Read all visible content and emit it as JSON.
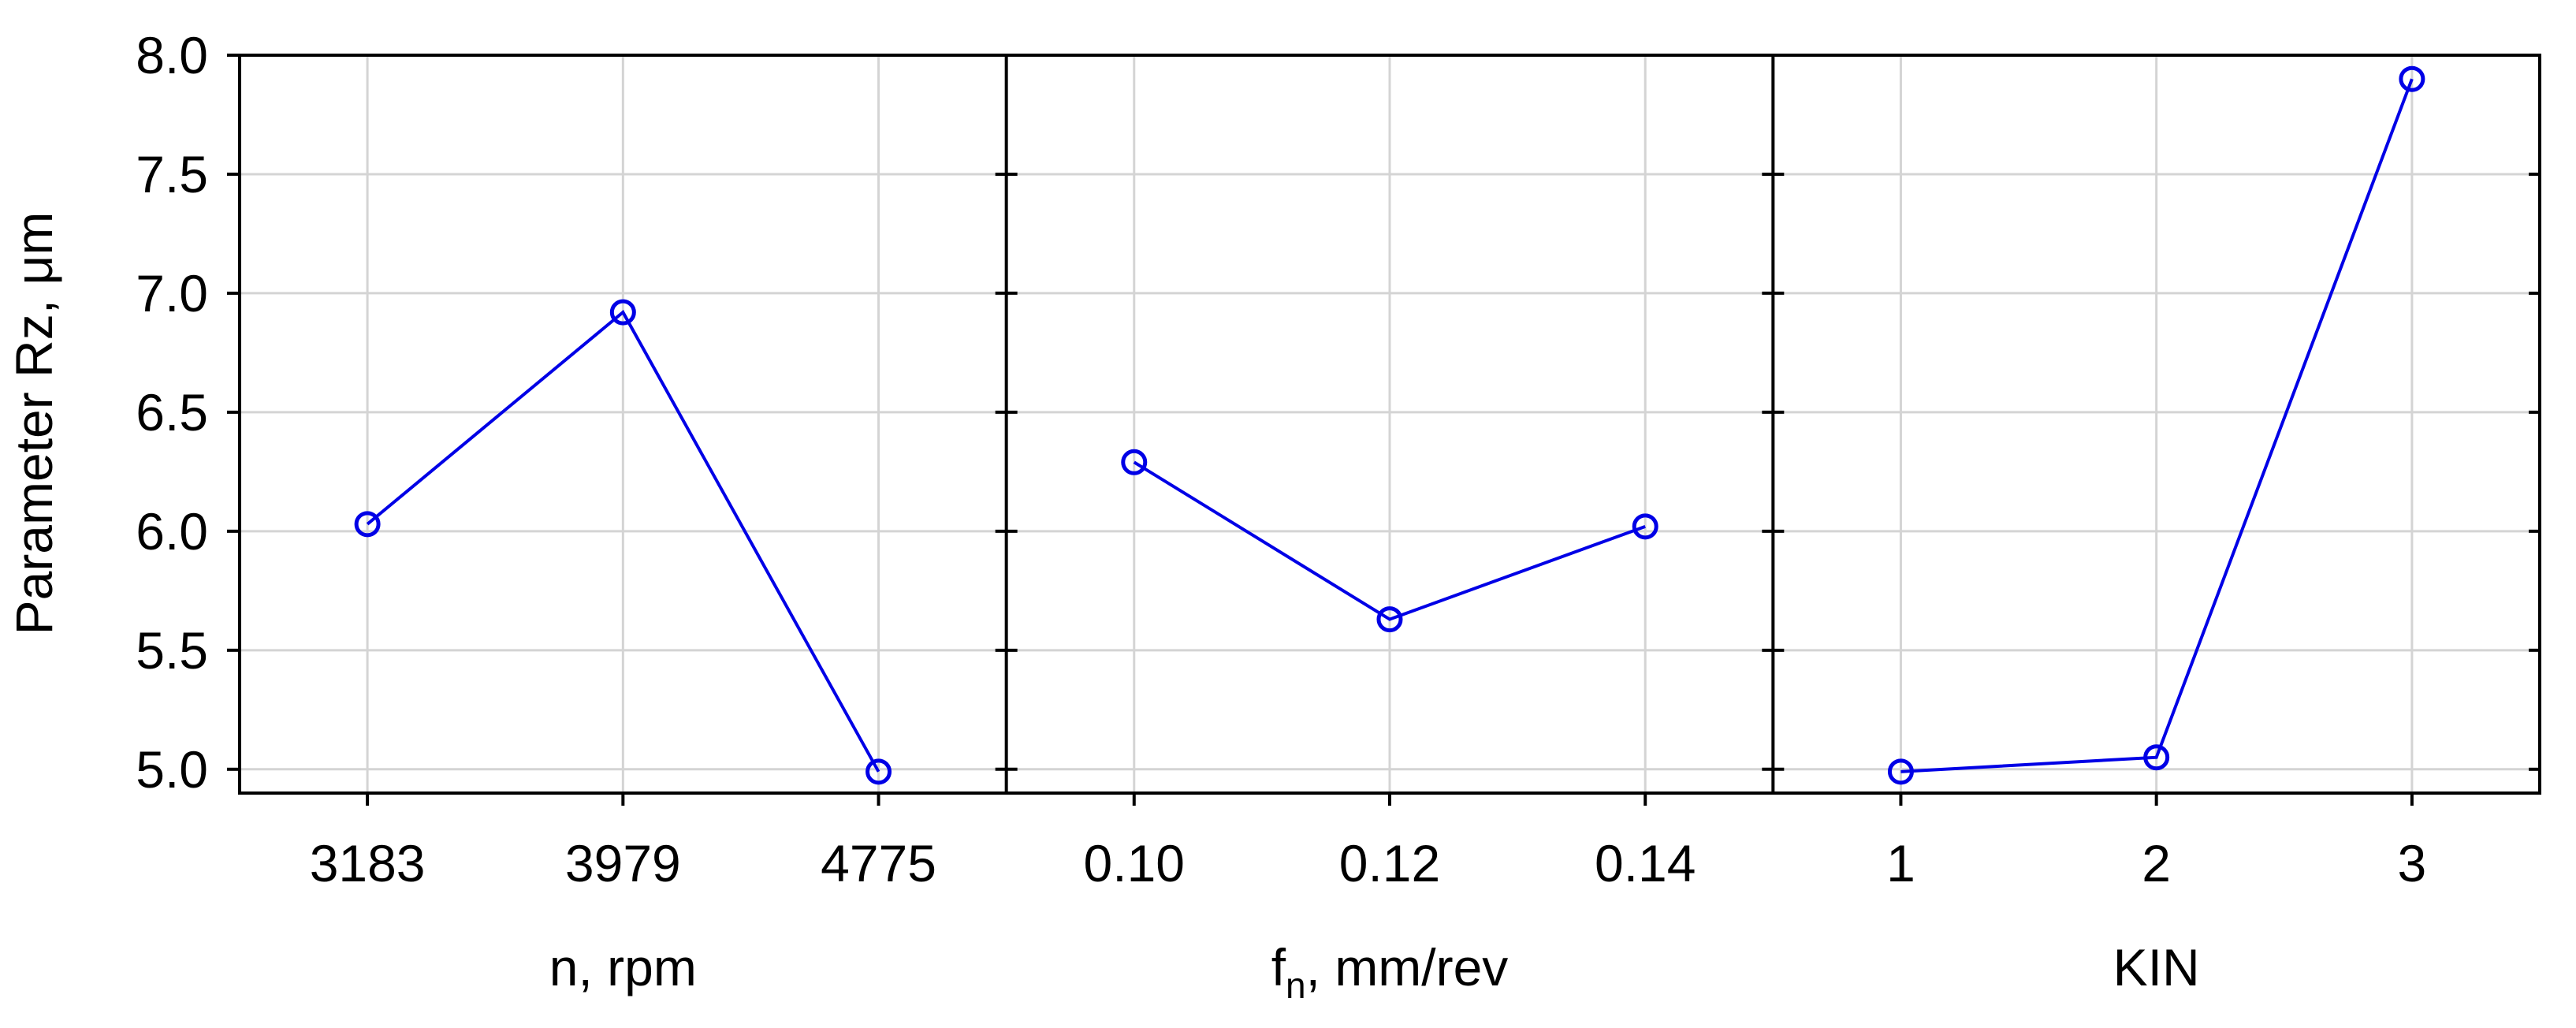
{
  "chart_data": {
    "type": "line",
    "ylabel": "Parameter Rz, μm",
    "ylim": [
      4.9,
      8.0
    ],
    "yticks": [
      "5.0",
      "5.5",
      "6.0",
      "6.5",
      "7.0",
      "7.5",
      "8.0"
    ],
    "grid": true,
    "line_color": "#0000e6",
    "panels": [
      {
        "xlabel_main": "n, rpm",
        "xlabel_sub": "",
        "xlabel_rest": "",
        "categories": [
          "3183",
          "3979",
          "4775"
        ],
        "values": [
          6.03,
          6.92,
          4.99
        ]
      },
      {
        "xlabel_main": "f",
        "xlabel_sub": "n",
        "xlabel_rest": ", mm/rev",
        "categories": [
          "0.10",
          "0.12",
          "0.14"
        ],
        "values": [
          6.29,
          5.63,
          6.02
        ]
      },
      {
        "xlabel_main": "KIN",
        "xlabel_sub": "",
        "xlabel_rest": "",
        "categories": [
          "1",
          "2",
          "3"
        ],
        "values": [
          4.99,
          5.05,
          7.9
        ]
      }
    ]
  }
}
